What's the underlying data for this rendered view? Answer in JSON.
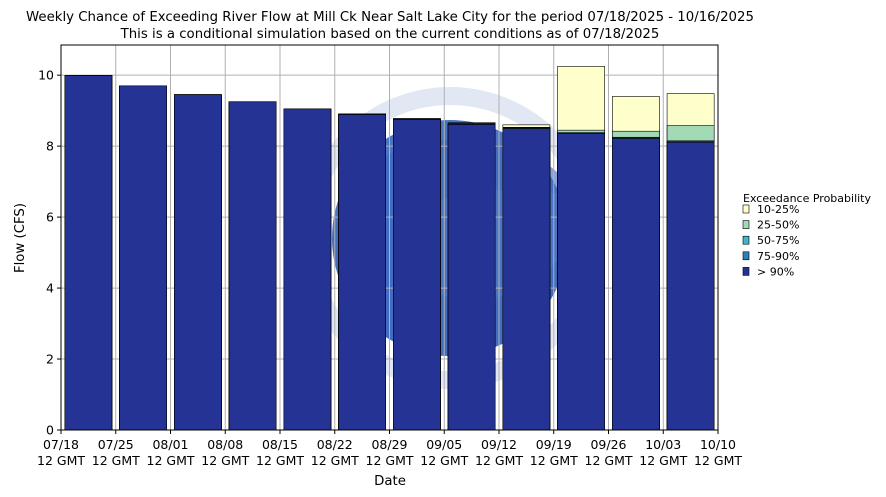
{
  "chart_data": {
    "type": "bar",
    "title": "Weekly Chance of Exceeding River Flow at Mill Ck Near Salt Lake City for the period 07/18/2025 - 10/16/2025",
    "subtitle": "This is a conditional simulation based on the current conditions as of 07/18/2025",
    "xlabel": "Date",
    "ylabel": "Flow (CFS)",
    "ylim": [
      0,
      10.85
    ],
    "yticks": [
      "0",
      "2",
      "4",
      "6",
      "8",
      "10"
    ],
    "xticks": [
      {
        "date": "07/18",
        "time": "12 GMT"
      },
      {
        "date": "07/25",
        "time": "12 GMT"
      },
      {
        "date": "08/01",
        "time": "12 GMT"
      },
      {
        "date": "08/08",
        "time": "12 GMT"
      },
      {
        "date": "08/15",
        "time": "12 GMT"
      },
      {
        "date": "08/22",
        "time": "12 GMT"
      },
      {
        "date": "08/29",
        "time": "12 GMT"
      },
      {
        "date": "09/05",
        "time": "12 GMT"
      },
      {
        "date": "09/12",
        "time": "12 GMT"
      },
      {
        "date": "09/19",
        "time": "12 GMT"
      },
      {
        "date": "09/26",
        "time": "12 GMT"
      },
      {
        "date": "10/03",
        "time": "12 GMT"
      },
      {
        "date": "10/10",
        "time": "12 GMT"
      }
    ],
    "grid": true,
    "legend_position": "right",
    "legend_title": "Exceedance Probability",
    "series": [
      {
        "name": "10-25%",
        "color": "#ffffcc",
        "values": [
          9.99,
          9.7,
          9.45,
          9.25,
          9.05,
          8.91,
          8.78,
          8.66,
          8.6,
          10.25,
          9.4,
          9.48
        ]
      },
      {
        "name": "25-50%",
        "color": "#a1dab4",
        "values": [
          9.99,
          9.7,
          9.45,
          9.25,
          9.05,
          8.9,
          8.77,
          8.64,
          8.53,
          8.45,
          8.42,
          8.58
        ]
      },
      {
        "name": "50-75%",
        "color": "#41b6c4",
        "values": [
          9.99,
          9.7,
          9.45,
          9.25,
          9.05,
          8.9,
          8.77,
          8.63,
          8.52,
          8.38,
          8.25,
          8.15
        ]
      },
      {
        "name": "75-90%",
        "color": "#2c7fb8",
        "values": [
          9.99,
          9.7,
          9.45,
          9.25,
          9.05,
          8.9,
          8.76,
          8.62,
          8.51,
          8.37,
          8.23,
          8.13
        ]
      },
      {
        "name": "> 90%",
        "color": "#253494",
        "values": [
          9.99,
          9.7,
          9.45,
          9.25,
          9.05,
          8.89,
          8.75,
          8.61,
          8.49,
          8.35,
          8.21,
          8.11
        ]
      }
    ]
  }
}
